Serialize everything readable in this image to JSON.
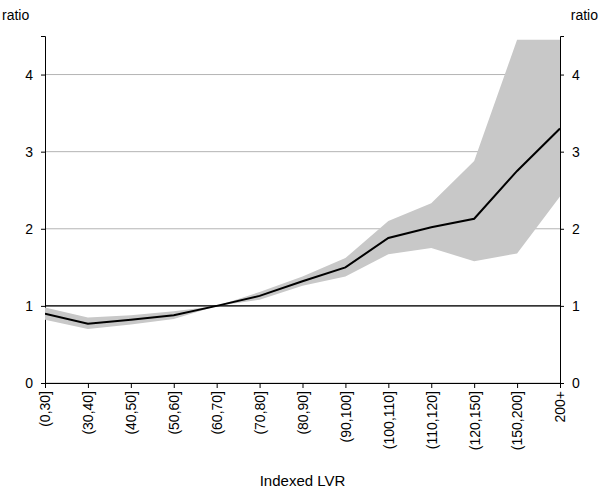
{
  "chart_data": {
    "type": "line",
    "x_label": "Indexed LVR",
    "y_label": "ratio",
    "y2_label": "ratio",
    "categories": [
      "(0,30]",
      "(30,40]",
      "(40,50]",
      "(50,60]",
      "(60,70]",
      "(70,80]",
      "(80,90]",
      "(90,100]",
      "(100,110]",
      "(110,120]",
      "(120,150]",
      "(150,200]",
      "200+"
    ],
    "series": [
      {
        "color": "#000000",
        "values": [
          0.9,
          0.77,
          0.82,
          0.88,
          1.0,
          1.13,
          1.32,
          1.5,
          1.88,
          2.02,
          2.13,
          2.75,
          3.3
        ],
        "lower": [
          0.82,
          0.7,
          0.76,
          0.83,
          1.0,
          1.08,
          1.26,
          1.38,
          1.67,
          1.75,
          1.58,
          1.68,
          2.42
        ],
        "upper": [
          0.98,
          0.85,
          0.88,
          0.93,
          1.0,
          1.18,
          1.38,
          1.62,
          2.1,
          2.33,
          2.88,
          4.45,
          4.45
        ]
      }
    ],
    "ylim": [
      0,
      4.5
    ],
    "yticks": [
      0,
      1,
      2,
      3,
      4
    ],
    "y2lim": [
      0,
      4.5
    ],
    "y2ticks": [
      0,
      1,
      2,
      3,
      4
    ],
    "hline": 1,
    "grid": true
  }
}
